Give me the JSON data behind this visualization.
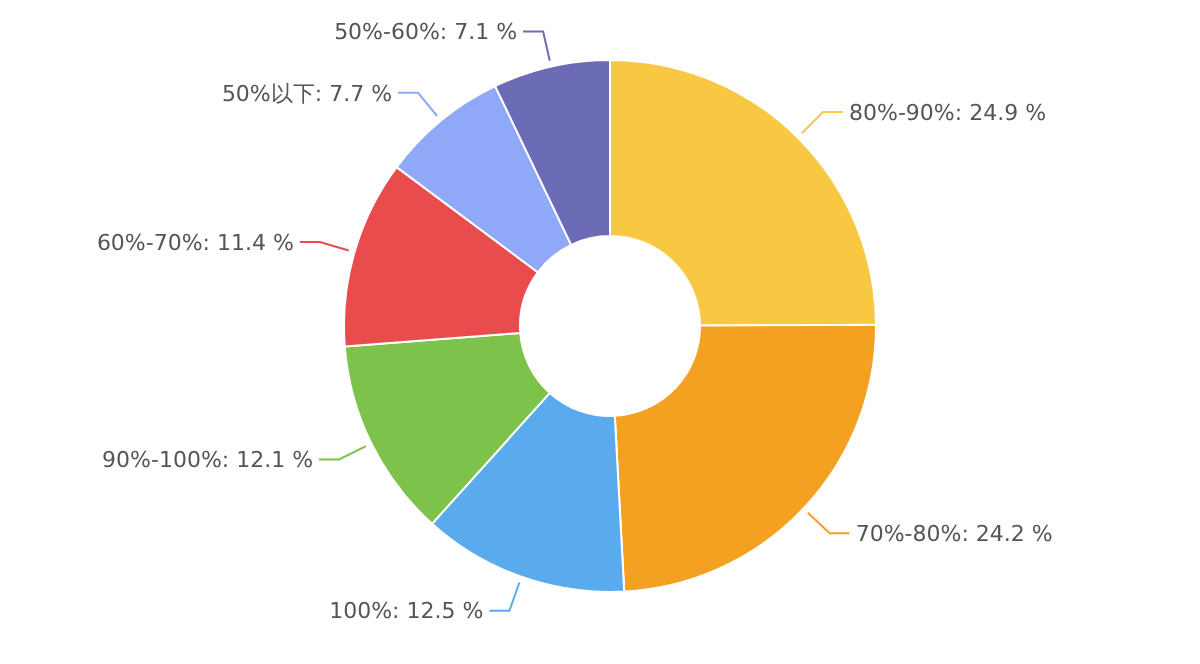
{
  "chart_data": {
    "type": "donut",
    "categories": [
      "80%-90%",
      "70%-80%",
      "100%",
      "90%-100%",
      "60%-70%",
      "50%以下",
      "50%-60%"
    ],
    "values": [
      24.9,
      24.2,
      12.5,
      12.1,
      11.4,
      7.7,
      7.1
    ],
    "value_labels": [
      "24.9 %",
      "24.2 %",
      "12.5 %",
      "12.1 %",
      "11.4 %",
      "7.7 %",
      "7.1 %"
    ],
    "colors": [
      "#f9c842",
      "#f4a020",
      "#5aaaee",
      "#7dc24b",
      "#e84c4c",
      "#8fa8f8",
      "#6b6bb6"
    ],
    "legend": false
  }
}
